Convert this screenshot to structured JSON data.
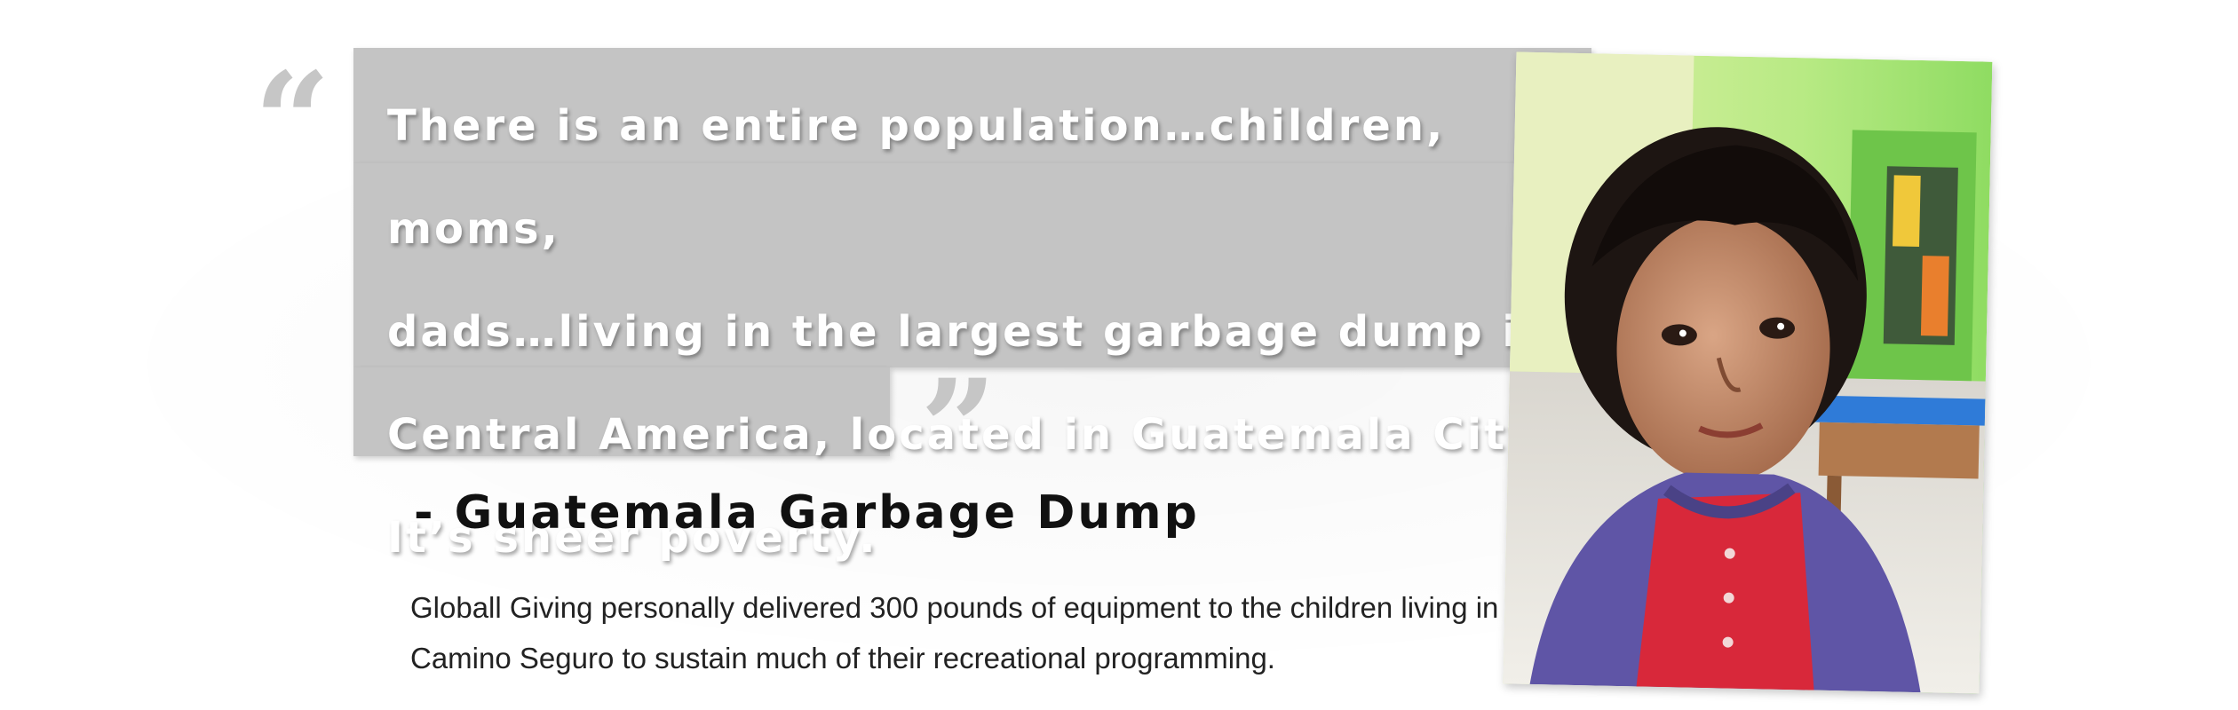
{
  "quote": {
    "open_mark": "“",
    "close_mark": "”",
    "text": "There is an entire population…children, moms,\ndads…living in the largest garbage dump in\nCentral America, located in Guatemala City.\nIt’s sheer poverty."
  },
  "attribution": "- Guatemala Garbage Dump",
  "description": "Globall Giving personally delivered 300 pounds of equipment to the children living in the Camino Seguro to sustain much of their recreational programming.",
  "colors": {
    "quote_box": "#c4c4c4",
    "quote_text": "#ffffff",
    "attribution": "#111111",
    "wall": "#9ee06a",
    "shirt_purple": "#5f55a6",
    "shirt_red": "#d8283a"
  },
  "photo": {
    "subject": "child-photo"
  }
}
